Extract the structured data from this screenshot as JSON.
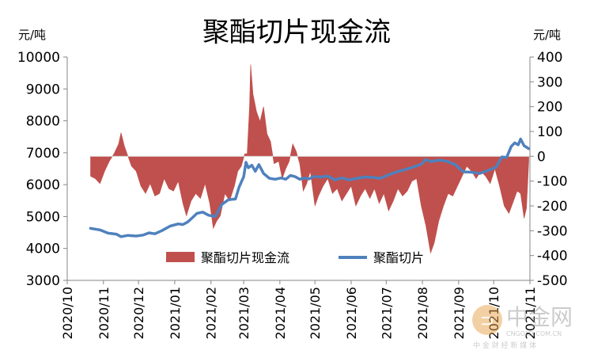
{
  "chart_data": {
    "type": "area+line",
    "title": "聚酯切片现金流",
    "left_axis_unit": "元/吨",
    "right_axis_unit": "元/吨",
    "left_axis": {
      "min": 3000,
      "max": 10000,
      "step": 1000,
      "ticks": [
        "3000",
        "4000",
        "5000",
        "6000",
        "7000",
        "8000",
        "9000",
        "10000"
      ]
    },
    "right_axis": {
      "min": -500,
      "max": 400,
      "step": 100,
      "ticks": [
        "-500",
        "-400",
        "-300",
        "-200",
        "-100",
        "0",
        "100",
        "200",
        "300",
        "400"
      ]
    },
    "x_axis": {
      "start": "2020-10-01",
      "end": "2021-11-01",
      "tick_labels": [
        "2020/10",
        "2020/11",
        "2020/12",
        "2021/01",
        "2021/02",
        "2021/03",
        "2021/04",
        "2021/05",
        "2021/06",
        "2021/07",
        "2021/08",
        "2021/09",
        "2021/10",
        "2021/11"
      ]
    },
    "legend_placement": "bottom-center",
    "grid": false,
    "colors": {
      "cashflow": "#c0504d",
      "price": "#4f81bd"
    },
    "series": [
      {
        "name": "聚酯切片现金流",
        "type": "area",
        "axis": "right",
        "points": [
          [
            "2020-10-21",
            -80
          ],
          [
            "2020-10-25",
            -90
          ],
          [
            "2020-10-29",
            -110
          ],
          [
            "2020-11-02",
            -60
          ],
          [
            "2020-11-06",
            -20
          ],
          [
            "2020-11-10",
            10
          ],
          [
            "2020-11-14",
            50
          ],
          [
            "2020-11-16",
            95
          ],
          [
            "2020-11-19",
            40
          ],
          [
            "2020-11-22",
            0
          ],
          [
            "2020-11-25",
            -40
          ],
          [
            "2020-11-29",
            -60
          ],
          [
            "2020-12-03",
            -120
          ],
          [
            "2020-12-07",
            -150
          ],
          [
            "2020-12-11",
            -110
          ],
          [
            "2020-12-15",
            -160
          ],
          [
            "2020-12-19",
            -150
          ],
          [
            "2020-12-23",
            -90
          ],
          [
            "2020-12-27",
            -130
          ],
          [
            "2020-12-31",
            -140
          ],
          [
            "2021-01-04",
            -100
          ],
          [
            "2021-01-08",
            -190
          ],
          [
            "2021-01-11",
            -240
          ],
          [
            "2021-01-15",
            -180
          ],
          [
            "2021-01-19",
            -150
          ],
          [
            "2021-01-23",
            -170
          ],
          [
            "2021-01-27",
            -110
          ],
          [
            "2021-01-31",
            -190
          ],
          [
            "2021-02-03",
            -290
          ],
          [
            "2021-02-06",
            -260
          ],
          [
            "2021-02-09",
            -240
          ],
          [
            "2021-02-13",
            -150
          ],
          [
            "2021-02-17",
            -180
          ],
          [
            "2021-02-21",
            -120
          ],
          [
            "2021-02-24",
            -60
          ],
          [
            "2021-02-27",
            -40
          ],
          [
            "2021-03-02",
            10
          ],
          [
            "2021-03-04",
            10
          ],
          [
            "2021-03-06",
            200
          ],
          [
            "2021-03-07",
            370
          ],
          [
            "2021-03-09",
            250
          ],
          [
            "2021-03-12",
            180
          ],
          [
            "2021-03-15",
            140
          ],
          [
            "2021-03-18",
            200
          ],
          [
            "2021-03-21",
            90
          ],
          [
            "2021-03-24",
            60
          ],
          [
            "2021-03-27",
            -30
          ],
          [
            "2021-03-31",
            -20
          ],
          [
            "2021-04-03",
            -90
          ],
          [
            "2021-04-06",
            -50
          ],
          [
            "2021-04-09",
            -20
          ],
          [
            "2021-04-12",
            50
          ],
          [
            "2021-04-15",
            20
          ],
          [
            "2021-04-18",
            -30
          ],
          [
            "2021-04-21",
            -140
          ],
          [
            "2021-04-24",
            -110
          ],
          [
            "2021-04-27",
            -60
          ],
          [
            "2021-05-01",
            -200
          ],
          [
            "2021-05-04",
            -160
          ],
          [
            "2021-05-08",
            -120
          ],
          [
            "2021-05-12",
            -90
          ],
          [
            "2021-05-16",
            -150
          ],
          [
            "2021-05-20",
            -130
          ],
          [
            "2021-05-24",
            -180
          ],
          [
            "2021-05-28",
            -150
          ],
          [
            "2021-06-01",
            -120
          ],
          [
            "2021-06-05",
            -200
          ],
          [
            "2021-06-09",
            -160
          ],
          [
            "2021-06-13",
            -130
          ],
          [
            "2021-06-17",
            -170
          ],
          [
            "2021-06-21",
            -130
          ],
          [
            "2021-06-25",
            -190
          ],
          [
            "2021-06-29",
            -150
          ],
          [
            "2021-07-03",
            -220
          ],
          [
            "2021-07-07",
            -180
          ],
          [
            "2021-07-11",
            -130
          ],
          [
            "2021-07-15",
            -160
          ],
          [
            "2021-07-19",
            -140
          ],
          [
            "2021-07-23",
            -100
          ],
          [
            "2021-07-27",
            -90
          ],
          [
            "2021-07-31",
            -200
          ],
          [
            "2021-08-04",
            -280
          ],
          [
            "2021-08-08",
            -390
          ],
          [
            "2021-08-11",
            -350
          ],
          [
            "2021-08-15",
            -260
          ],
          [
            "2021-08-19",
            -200
          ],
          [
            "2021-08-23",
            -150
          ],
          [
            "2021-08-27",
            -160
          ],
          [
            "2021-08-31",
            -120
          ],
          [
            "2021-09-04",
            -80
          ],
          [
            "2021-09-08",
            -40
          ],
          [
            "2021-09-12",
            -60
          ],
          [
            "2021-09-16",
            -90
          ],
          [
            "2021-09-20",
            -60
          ],
          [
            "2021-09-24",
            -80
          ],
          [
            "2021-09-28",
            -110
          ],
          [
            "2021-10-02",
            -50
          ],
          [
            "2021-10-06",
            -120
          ],
          [
            "2021-10-10",
            -200
          ],
          [
            "2021-10-14",
            -230
          ],
          [
            "2021-10-18",
            -180
          ],
          [
            "2021-10-21",
            -140
          ],
          [
            "2021-10-24",
            -150
          ],
          [
            "2021-10-27",
            -250
          ],
          [
            "2021-10-29",
            -210
          ],
          [
            "2021-10-31",
            -20
          ]
        ]
      },
      {
        "name": "聚酯切片",
        "type": "line",
        "axis": "left",
        "points": [
          [
            "2020-10-21",
            4630
          ],
          [
            "2020-10-29",
            4580
          ],
          [
            "2020-11-05",
            4480
          ],
          [
            "2020-11-12",
            4450
          ],
          [
            "2020-11-16",
            4370
          ],
          [
            "2020-11-22",
            4410
          ],
          [
            "2020-11-29",
            4390
          ],
          [
            "2020-12-05",
            4420
          ],
          [
            "2020-12-10",
            4490
          ],
          [
            "2020-12-15",
            4460
          ],
          [
            "2020-12-21",
            4560
          ],
          [
            "2020-12-28",
            4700
          ],
          [
            "2021-01-04",
            4770
          ],
          [
            "2021-01-08",
            4750
          ],
          [
            "2021-01-12",
            4830
          ],
          [
            "2021-01-16",
            4960
          ],
          [
            "2021-01-20",
            5100
          ],
          [
            "2021-01-25",
            5140
          ],
          [
            "2021-01-30",
            5040
          ],
          [
            "2021-02-05",
            5000
          ],
          [
            "2021-02-10",
            5370
          ],
          [
            "2021-02-16",
            5530
          ],
          [
            "2021-02-22",
            5550
          ],
          [
            "2021-02-25",
            5920
          ],
          [
            "2021-03-01",
            6250
          ],
          [
            "2021-03-03",
            6700
          ],
          [
            "2021-03-05",
            6530
          ],
          [
            "2021-03-08",
            6610
          ],
          [
            "2021-03-11",
            6420
          ],
          [
            "2021-03-14",
            6630
          ],
          [
            "2021-03-18",
            6350
          ],
          [
            "2021-03-23",
            6200
          ],
          [
            "2021-03-28",
            6170
          ],
          [
            "2021-04-02",
            6210
          ],
          [
            "2021-04-06",
            6170
          ],
          [
            "2021-04-10",
            6290
          ],
          [
            "2021-04-14",
            6250
          ],
          [
            "2021-04-18",
            6170
          ],
          [
            "2021-04-22",
            6210
          ],
          [
            "2021-04-26",
            6180
          ],
          [
            "2021-04-30",
            6260
          ],
          [
            "2021-05-06",
            6240
          ],
          [
            "2021-05-12",
            6270
          ],
          [
            "2021-05-18",
            6150
          ],
          [
            "2021-05-24",
            6210
          ],
          [
            "2021-05-30",
            6150
          ],
          [
            "2021-06-05",
            6190
          ],
          [
            "2021-06-12",
            6240
          ],
          [
            "2021-06-19",
            6230
          ],
          [
            "2021-06-26",
            6200
          ],
          [
            "2021-07-03",
            6310
          ],
          [
            "2021-07-10",
            6400
          ],
          [
            "2021-07-17",
            6470
          ],
          [
            "2021-07-24",
            6550
          ],
          [
            "2021-07-31",
            6640
          ],
          [
            "2021-08-04",
            6790
          ],
          [
            "2021-08-08",
            6720
          ],
          [
            "2021-08-15",
            6770
          ],
          [
            "2021-08-22",
            6730
          ],
          [
            "2021-08-29",
            6630
          ],
          [
            "2021-09-05",
            6400
          ],
          [
            "2021-09-12",
            6390
          ],
          [
            "2021-09-19",
            6350
          ],
          [
            "2021-09-26",
            6440
          ],
          [
            "2021-10-03",
            6550
          ],
          [
            "2021-10-08",
            6870
          ],
          [
            "2021-10-12",
            6850
          ],
          [
            "2021-10-16",
            7200
          ],
          [
            "2021-10-19",
            7310
          ],
          [
            "2021-10-22",
            7250
          ],
          [
            "2021-10-24",
            7430
          ],
          [
            "2021-10-27",
            7220
          ],
          [
            "2021-10-31",
            7130
          ]
        ]
      }
    ]
  },
  "watermark": {
    "brand": "中金网",
    "sub": "CNGOLD.COM.CN",
    "tagline": "中 金 财 经 新 媒 体"
  }
}
